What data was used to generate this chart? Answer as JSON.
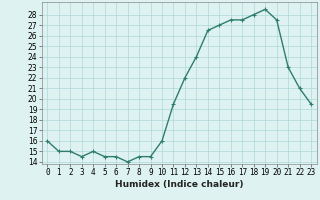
{
  "x": [
    0,
    1,
    2,
    3,
    4,
    5,
    6,
    7,
    8,
    9,
    10,
    11,
    12,
    13,
    14,
    15,
    16,
    17,
    18,
    19,
    20,
    21,
    22,
    23
  ],
  "y": [
    16,
    15,
    15,
    14.5,
    15,
    14.5,
    14.5,
    14,
    14.5,
    14.5,
    16,
    19.5,
    22,
    24,
    26.5,
    27,
    27.5,
    27.5,
    28,
    28.5,
    27.5,
    23,
    21,
    19.5
  ],
  "line_color": "#2e7d6e",
  "marker": "+",
  "marker_size": 3,
  "bg_color": "#dff2f2",
  "grid_color": "#aed8d8",
  "xlabel": "Humidex (Indice chaleur)",
  "xlim": [
    -0.5,
    23.5
  ],
  "ylim": [
    13.8,
    29.2
  ],
  "xtick_labels": [
    "0",
    "1",
    "2",
    "3",
    "4",
    "5",
    "6",
    "7",
    "8",
    "9",
    "10",
    "11",
    "12",
    "13",
    "14",
    "15",
    "16",
    "17",
    "18",
    "19",
    "20",
    "21",
    "22",
    "23"
  ],
  "yticks": [
    14,
    15,
    16,
    17,
    18,
    19,
    20,
    21,
    22,
    23,
    24,
    25,
    26,
    27,
    28
  ],
  "tick_fontsize": 5.5,
  "xlabel_fontsize": 6.5,
  "line_width": 1.0
}
